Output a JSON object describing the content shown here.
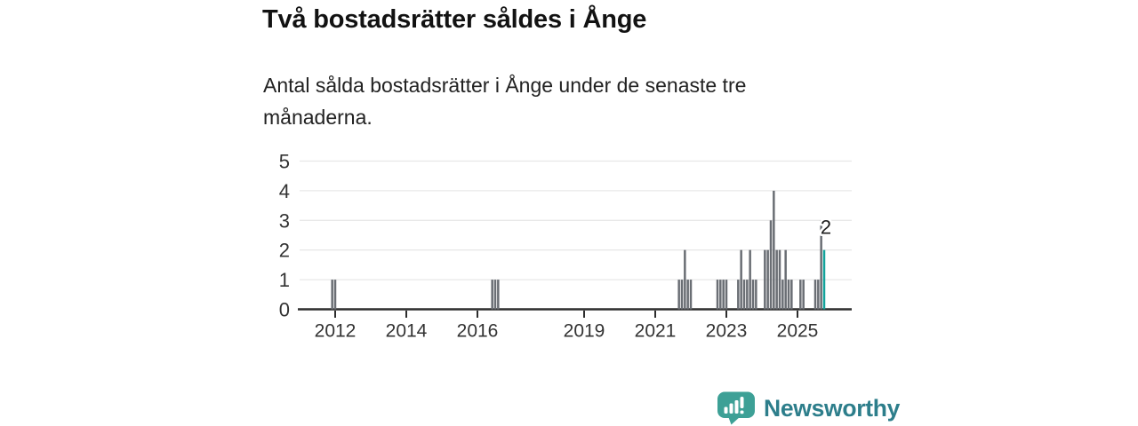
{
  "chart_data": {
    "type": "bar",
    "title": "Två bostadsrätter såldes i Ånge",
    "subtitle": "Antal sålda bostadsrätter i Ånge under de senaste tre månaderna.",
    "ylim": [
      0,
      5
    ],
    "y_ticks": [
      0,
      1,
      2,
      3,
      4,
      5
    ],
    "x_ticks": [
      2012,
      2014,
      2016,
      2019,
      2021,
      2023,
      2025
    ],
    "x_range": [
      "2011-01",
      "2026-06"
    ],
    "grid": true,
    "legend": "none",
    "months": [
      {
        "month": "2011-12",
        "value": 1
      },
      {
        "month": "2012-01",
        "value": 1
      },
      {
        "month": "2016-06",
        "value": 1
      },
      {
        "month": "2016-07",
        "value": 1
      },
      {
        "month": "2016-08",
        "value": 1
      },
      {
        "month": "2021-09",
        "value": 1
      },
      {
        "month": "2021-10",
        "value": 1
      },
      {
        "month": "2021-11",
        "value": 2
      },
      {
        "month": "2021-12",
        "value": 1
      },
      {
        "month": "2022-01",
        "value": 1
      },
      {
        "month": "2022-10",
        "value": 1
      },
      {
        "month": "2022-11",
        "value": 1
      },
      {
        "month": "2022-12",
        "value": 1
      },
      {
        "month": "2023-01",
        "value": 1
      },
      {
        "month": "2023-05",
        "value": 1
      },
      {
        "month": "2023-06",
        "value": 2
      },
      {
        "month": "2023-07",
        "value": 1
      },
      {
        "month": "2023-08",
        "value": 1
      },
      {
        "month": "2023-09",
        "value": 2
      },
      {
        "month": "2023-10",
        "value": 1
      },
      {
        "month": "2023-11",
        "value": 1
      },
      {
        "month": "2024-02",
        "value": 2
      },
      {
        "month": "2024-03",
        "value": 2
      },
      {
        "month": "2024-04",
        "value": 3
      },
      {
        "month": "2024-05",
        "value": 4
      },
      {
        "month": "2024-06",
        "value": 2
      },
      {
        "month": "2024-07",
        "value": 2
      },
      {
        "month": "2024-08",
        "value": 1
      },
      {
        "month": "2024-09",
        "value": 2
      },
      {
        "month": "2024-10",
        "value": 1
      },
      {
        "month": "2024-11",
        "value": 1
      },
      {
        "month": "2025-02",
        "value": 1
      },
      {
        "month": "2025-03",
        "value": 1
      },
      {
        "month": "2025-07",
        "value": 1
      },
      {
        "month": "2025-08",
        "value": 1
      },
      {
        "month": "2025-09",
        "value": 3
      },
      {
        "month": "2025-10",
        "value": 2
      }
    ],
    "highlight": {
      "month": "2025-10",
      "value": 2,
      "label": "2"
    },
    "colors": {
      "bar": "#6a6e74",
      "highlight": "#12a29b",
      "axis": "#2d2d2d",
      "grid": "#e8e8e8",
      "tick_text": "#333333"
    }
  },
  "footer": {
    "brand": "Newsworthy",
    "brand_icon_color": "#3da096",
    "brand_text_color": "#2d7e8b"
  }
}
